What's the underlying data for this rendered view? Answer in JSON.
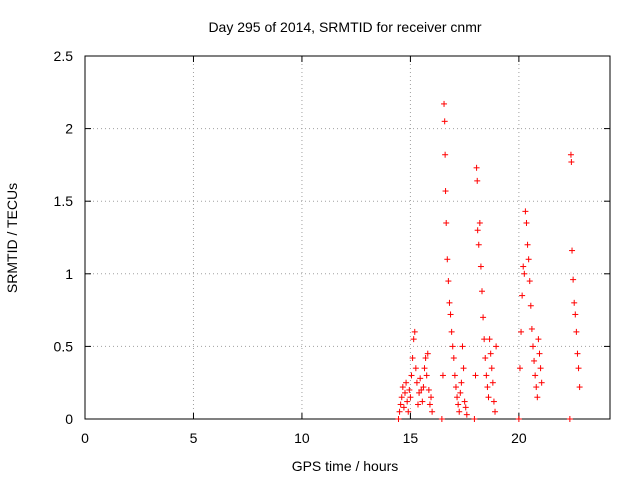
{
  "chart_data": {
    "type": "scatter",
    "title": "Day 295 of 2014, SRMTID for receiver cnmr",
    "xlabel": "GPS time / hours",
    "ylabel": "SRMTID / TECUs",
    "xlim": [
      0,
      24.2
    ],
    "ylim": [
      0,
      2.5
    ],
    "xticks": [
      0,
      5,
      10,
      15,
      20
    ],
    "yticks": [
      0,
      0.5,
      1,
      1.5,
      2,
      2.5
    ],
    "ytick_labels": [
      "0",
      "0.5",
      "1",
      "1.5",
      "2",
      "2.5"
    ],
    "grid": true,
    "legend": "none",
    "marker": "plus",
    "color": "#ff0000",
    "series": [
      {
        "values": [
          [
            14.45,
            0.0
          ],
          [
            14.5,
            0.05
          ],
          [
            14.55,
            0.1
          ],
          [
            14.6,
            0.15
          ],
          [
            14.65,
            0.22
          ],
          [
            14.7,
            0.08
          ],
          [
            14.75,
            0.18
          ],
          [
            14.8,
            0.25
          ],
          [
            14.85,
            0.12
          ],
          [
            14.9,
            0.05
          ],
          [
            14.95,
            0.2
          ],
          [
            15.0,
            0.15
          ],
          [
            15.05,
            0.3
          ],
          [
            15.1,
            0.42
          ],
          [
            15.15,
            0.55
          ],
          [
            15.2,
            0.6
          ],
          [
            15.25,
            0.35
          ],
          [
            15.3,
            0.25
          ],
          [
            15.35,
            0.1
          ],
          [
            15.4,
            0.18
          ],
          [
            15.45,
            0.28
          ],
          [
            15.5,
            0.2
          ],
          [
            15.55,
            0.12
          ],
          [
            15.6,
            0.22
          ],
          [
            15.65,
            0.35
          ],
          [
            15.7,
            0.42
          ],
          [
            15.75,
            0.3
          ],
          [
            15.8,
            0.45
          ],
          [
            15.85,
            0.2
          ],
          [
            15.9,
            0.1
          ],
          [
            15.95,
            0.15
          ],
          [
            16.0,
            0.05
          ],
          [
            16.45,
            0.0
          ],
          [
            16.5,
            0.3
          ],
          [
            16.55,
            2.17
          ],
          [
            16.58,
            2.05
          ],
          [
            16.6,
            1.82
          ],
          [
            16.62,
            1.57
          ],
          [
            16.65,
            1.35
          ],
          [
            16.7,
            1.1
          ],
          [
            16.75,
            0.95
          ],
          [
            16.8,
            0.8
          ],
          [
            16.85,
            0.72
          ],
          [
            16.9,
            0.6
          ],
          [
            16.95,
            0.5
          ],
          [
            17.0,
            0.42
          ],
          [
            17.05,
            0.3
          ],
          [
            17.1,
            0.22
          ],
          [
            17.15,
            0.15
          ],
          [
            17.2,
            0.1
          ],
          [
            17.25,
            0.05
          ],
          [
            17.3,
            0.18
          ],
          [
            17.35,
            0.25
          ],
          [
            17.4,
            0.5
          ],
          [
            17.45,
            0.35
          ],
          [
            17.5,
            0.12
          ],
          [
            17.55,
            0.08
          ],
          [
            17.6,
            0.03
          ],
          [
            17.95,
            0.0
          ],
          [
            18.0,
            0.3
          ],
          [
            18.05,
            1.73
          ],
          [
            18.08,
            1.64
          ],
          [
            18.1,
            1.3
          ],
          [
            18.15,
            1.2
          ],
          [
            18.2,
            1.35
          ],
          [
            18.25,
            1.05
          ],
          [
            18.3,
            0.88
          ],
          [
            18.35,
            0.7
          ],
          [
            18.4,
            0.55
          ],
          [
            18.45,
            0.42
          ],
          [
            18.5,
            0.3
          ],
          [
            18.55,
            0.22
          ],
          [
            18.6,
            0.15
          ],
          [
            18.65,
            0.55
          ],
          [
            18.7,
            0.45
          ],
          [
            18.75,
            0.35
          ],
          [
            18.8,
            0.25
          ],
          [
            18.85,
            0.12
          ],
          [
            18.9,
            0.05
          ],
          [
            18.95,
            0.5
          ],
          [
            20.0,
            0.0
          ],
          [
            20.05,
            0.35
          ],
          [
            20.1,
            0.6
          ],
          [
            20.15,
            0.85
          ],
          [
            20.2,
            1.05
          ],
          [
            20.25,
            1.0
          ],
          [
            20.3,
            1.43
          ],
          [
            20.35,
            1.35
          ],
          [
            20.4,
            1.2
          ],
          [
            20.45,
            1.1
          ],
          [
            20.5,
            0.95
          ],
          [
            20.55,
            0.78
          ],
          [
            20.6,
            0.62
          ],
          [
            20.65,
            0.5
          ],
          [
            20.7,
            0.4
          ],
          [
            20.75,
            0.3
          ],
          [
            20.8,
            0.22
          ],
          [
            20.85,
            0.15
          ],
          [
            20.9,
            0.55
          ],
          [
            20.95,
            0.45
          ],
          [
            21.0,
            0.35
          ],
          [
            21.05,
            0.25
          ],
          [
            22.35,
            0.0
          ],
          [
            22.4,
            1.82
          ],
          [
            22.42,
            1.77
          ],
          [
            22.45,
            1.16
          ],
          [
            22.5,
            0.96
          ],
          [
            22.55,
            0.8
          ],
          [
            22.6,
            0.72
          ],
          [
            22.65,
            0.6
          ],
          [
            22.7,
            0.45
          ],
          [
            22.75,
            0.35
          ],
          [
            22.8,
            0.22
          ]
        ]
      }
    ]
  }
}
